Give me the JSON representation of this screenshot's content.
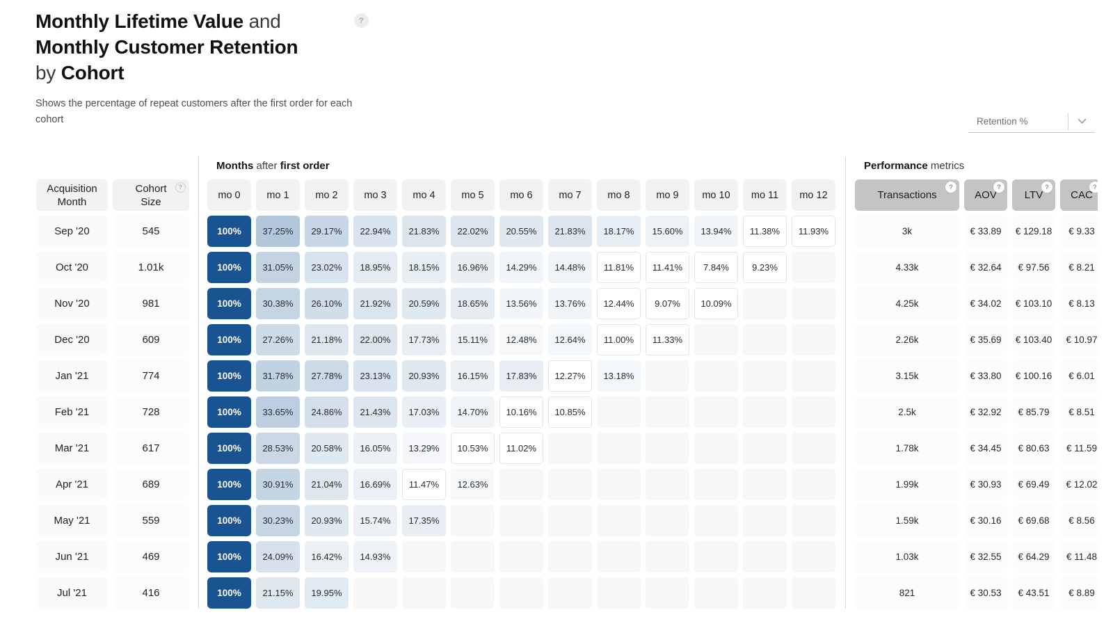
{
  "header": {
    "title_line1_bold": "Monthly Lifetime Value",
    "title_line1_rest": " and",
    "title_line2_bold": "Monthly Customer Retention",
    "title_line3_pre": "by ",
    "title_line3_bold": "Cohort",
    "help_icon": "question-mark",
    "subtitle": "Shows the percentage of repeat customers after the first order for each cohort"
  },
  "dropdown": {
    "value": "Retention %",
    "chevron_icon": "chevron-down"
  },
  "table": {
    "months_section": {
      "bold1": "Months",
      "mid": " after ",
      "bold2": "first order"
    },
    "metrics_section": {
      "bold": "Performance",
      "rest": " metrics"
    },
    "left_headers": {
      "acquisition_month": "Acquisition Month",
      "cohort_size": "Cohort Size"
    },
    "month_cols": [
      "mo 0",
      "mo 1",
      "mo 2",
      "mo 3",
      "mo 4",
      "mo 5",
      "mo 6",
      "mo 7",
      "mo 8",
      "mo 9",
      "mo 10",
      "mo 11",
      "mo 12"
    ],
    "metric_cols": [
      "Transactions",
      "AOV",
      "LTV",
      "CAC"
    ],
    "rows": [
      {
        "month": "Sep '20",
        "size": "545",
        "retention": [
          "100%",
          "37.25%",
          "29.17%",
          "22.94%",
          "21.83%",
          "22.02%",
          "20.55%",
          "21.83%",
          "18.17%",
          "15.60%",
          "13.94%",
          "11.38%",
          "11.93%"
        ],
        "transactions": "3k",
        "aov": "€ 33.89",
        "ltv": "€ 129.18",
        "cac": "€ 9.33"
      },
      {
        "month": "Oct '20",
        "size": "1.01k",
        "retention": [
          "100%",
          "31.05%",
          "23.02%",
          "18.95%",
          "18.15%",
          "16.96%",
          "14.29%",
          "14.48%",
          "11.81%",
          "11.41%",
          "7.84%",
          "9.23%"
        ],
        "transactions": "4.33k",
        "aov": "€ 32.64",
        "ltv": "€ 97.56",
        "cac": "€ 8.21"
      },
      {
        "month": "Nov '20",
        "size": "981",
        "retention": [
          "100%",
          "30.38%",
          "26.10%",
          "21.92%",
          "20.59%",
          "18.65%",
          "13.56%",
          "13.76%",
          "12.44%",
          "9.07%",
          "10.09%"
        ],
        "transactions": "4.25k",
        "aov": "€ 34.02",
        "ltv": "€ 103.10",
        "cac": "€ 8.13"
      },
      {
        "month": "Dec '20",
        "size": "609",
        "retention": [
          "100%",
          "27.26%",
          "21.18%",
          "22.00%",
          "17.73%",
          "15.11%",
          "12.48%",
          "12.64%",
          "11.00%",
          "11.33%"
        ],
        "transactions": "2.26k",
        "aov": "€ 35.69",
        "ltv": "€ 103.40",
        "cac": "€ 10.97"
      },
      {
        "month": "Jan '21",
        "size": "774",
        "retention": [
          "100%",
          "31.78%",
          "27.78%",
          "23.13%",
          "20.93%",
          "16.15%",
          "17.83%",
          "12.27%",
          "13.18%"
        ],
        "transactions": "3.15k",
        "aov": "€ 33.80",
        "ltv": "€ 100.16",
        "cac": "€ 6.01"
      },
      {
        "month": "Feb '21",
        "size": "728",
        "retention": [
          "100%",
          "33.65%",
          "24.86%",
          "21.43%",
          "17.03%",
          "14.70%",
          "10.16%",
          "10.85%"
        ],
        "transactions": "2.5k",
        "aov": "€ 32.92",
        "ltv": "€ 85.79",
        "cac": "€ 8.51"
      },
      {
        "month": "Mar '21",
        "size": "617",
        "retention": [
          "100%",
          "28.53%",
          "20.58%",
          "16.05%",
          "13.29%",
          "10.53%",
          "11.02%"
        ],
        "transactions": "1.78k",
        "aov": "€ 34.45",
        "ltv": "€ 80.63",
        "cac": "€ 11.59"
      },
      {
        "month": "Apr '21",
        "size": "689",
        "retention": [
          "100%",
          "30.91%",
          "21.04%",
          "16.69%",
          "11.47%",
          "12.63%"
        ],
        "transactions": "1.99k",
        "aov": "€ 30.93",
        "ltv": "€ 69.49",
        "cac": "€ 12.02"
      },
      {
        "month": "May '21",
        "size": "559",
        "retention": [
          "100%",
          "30.23%",
          "20.93%",
          "15.74%",
          "17.35%"
        ],
        "transactions": "1.59k",
        "aov": "€ 30.16",
        "ltv": "€ 69.68",
        "cac": "€ 8.56"
      },
      {
        "month": "Jun '21",
        "size": "469",
        "retention": [
          "100%",
          "24.09%",
          "16.42%",
          "14.93%"
        ],
        "transactions": "1.03k",
        "aov": "€ 32.55",
        "ltv": "€ 64.29",
        "cac": "€ 11.48"
      },
      {
        "month": "Jul '21",
        "size": "416",
        "retention": [
          "100%",
          "21.15%",
          "19.95%"
        ],
        "transactions": "821",
        "aov": "€ 30.53",
        "ltv": "€ 43.51",
        "cac": "€ 8.89"
      }
    ]
  },
  "colors": {
    "full_retention_bg": "#1a5391",
    "full_retention_text": "#ffffff",
    "scale_low_bg": "#f6f8fa",
    "scale_high_bg": "#b2c6da",
    "scale_low_value": 12.45,
    "scale_high_value": 37.25,
    "white_cell_border": "#e4e4e4",
    "empty_cell_bg": "#f7f7f7",
    "header_light_bg": "#f2f2f2",
    "header_metric_bg": "#c4c4c4",
    "divider": "#d9d9d9"
  }
}
